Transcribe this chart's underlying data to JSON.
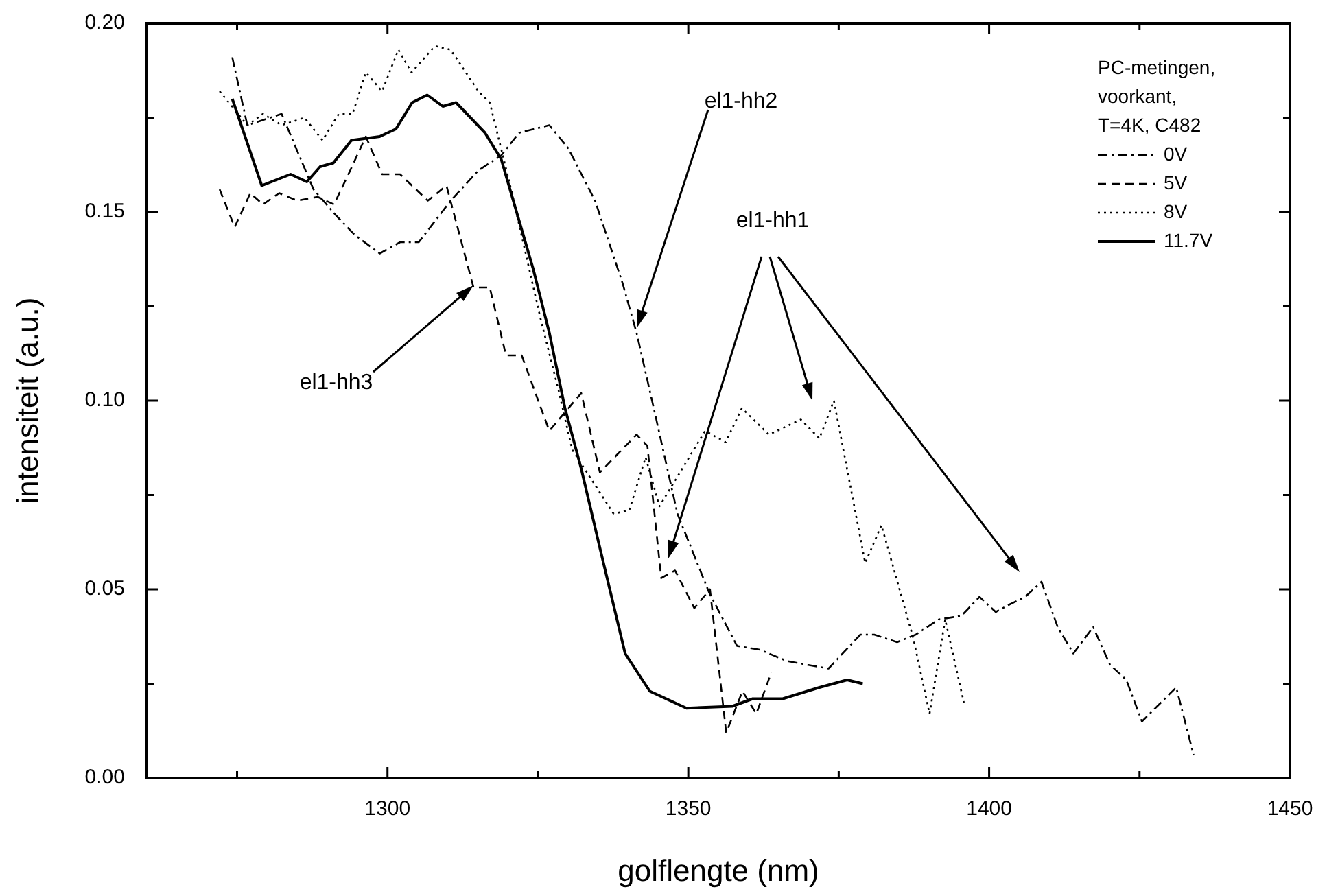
{
  "chart_data": {
    "type": "line",
    "xlabel": "golflengte (nm)",
    "ylabel": "intensiteit (a.u.)",
    "legend_title": "PC-metingen, voorkant, T=4K, C482",
    "legend": "top right",
    "marker": "none",
    "grid": false,
    "xlim": [
      1260,
      1450
    ],
    "xticks": [
      {
        "value": 1275,
        "label": null
      },
      1300,
      {
        "value": 1325,
        "label": null
      },
      1350,
      {
        "value": 1375,
        "label": null
      },
      1400,
      {
        "value": 1425,
        "label": null
      },
      1450
    ],
    "ylim": [
      0,
      0.2
    ],
    "yticks": [
      {
        "value": 0,
        "label": "0.00"
      },
      {
        "value": 0.025,
        "label": null
      },
      {
        "value": 0.05,
        "label": "0.05"
      },
      {
        "value": 0.075,
        "label": null
      },
      {
        "value": 0.1,
        "label": "0.10"
      },
      {
        "value": 0.125,
        "label": null
      },
      {
        "value": 0.15,
        "label": "0.15"
      },
      {
        "value": 0.175,
        "label": null
      },
      {
        "value": 0.2,
        "label": "0.20"
      }
    ],
    "series": [
      {
        "name": "0V",
        "color": "#000000",
        "line_style": "dashdot",
        "x": [
          1274.2,
          1276.7,
          1282.4,
          1287.7,
          1291.5,
          1294.5,
          1298.7,
          1302.1,
          1305.2,
          1310.5,
          1315.1,
          1318.9,
          1321.9,
          1326.9,
          1330.0,
          1334.5,
          1339.1,
          1341.4,
          1344.4,
          1348.2,
          1353.5,
          1358.1,
          1361.9,
          1366.4,
          1373.3,
          1378.6,
          1380.9,
          1384.7,
          1387.8,
          1391.6,
          1395.4,
          1398.4,
          1401.1,
          1403.4,
          1406.0,
          1408.7,
          1411.4,
          1414.0,
          1417.3,
          1420.1,
          1422.8,
          1425.4,
          1431.1,
          1434.0
        ],
        "values": [
          0.191,
          0.173,
          0.176,
          0.156,
          0.149,
          0.144,
          0.139,
          0.142,
          0.142,
          0.153,
          0.161,
          0.165,
          0.171,
          0.173,
          0.167,
          0.153,
          0.131,
          0.118,
          0.097,
          0.07,
          0.049,
          0.035,
          0.034,
          0.031,
          0.029,
          0.038,
          0.038,
          0.036,
          0.038,
          0.042,
          0.043,
          0.048,
          0.044,
          0.046,
          0.048,
          0.052,
          0.04,
          0.033,
          0.04,
          0.03,
          0.026,
          0.015,
          0.024,
          0.006
        ]
      },
      {
        "name": "5V",
        "color": "#000000",
        "line_style": "dashed",
        "x": [
          1272.1,
          1274.6,
          1277.2,
          1279.3,
          1282.0,
          1285.0,
          1288.4,
          1291.1,
          1293.8,
          1296.4,
          1299.1,
          1302.1,
          1306.7,
          1309.8,
          1314.3,
          1317.0,
          1319.7,
          1322.3,
          1326.9,
          1332.2,
          1335.3,
          1341.4,
          1343.2,
          1345.5,
          1347.8,
          1351.0,
          1353.6,
          1356.3,
          1359.0,
          1361.3,
          1363.8
        ],
        "values": [
          0.156,
          0.146,
          0.155,
          0.152,
          0.155,
          0.153,
          0.154,
          0.152,
          0.161,
          0.17,
          0.16,
          0.16,
          0.153,
          0.157,
          0.13,
          0.13,
          0.112,
          0.112,
          0.092,
          0.102,
          0.081,
          0.091,
          0.088,
          0.053,
          0.055,
          0.045,
          0.05,
          0.012,
          0.023,
          0.017,
          0.028
        ]
      },
      {
        "name": "8V",
        "color": "#000000",
        "line_style": "dotted",
        "x": [
          1272.1,
          1276.7,
          1279.3,
          1282.4,
          1286.2,
          1289.2,
          1291.9,
          1294.2,
          1296.4,
          1299.1,
          1301.8,
          1304.0,
          1307.9,
          1310.5,
          1315.1,
          1317.0,
          1320.4,
          1325.4,
          1328.4,
          1330.7,
          1337.6,
          1340.2,
          1342.9,
          1345.2,
          1352.8,
          1356.2,
          1358.9,
          1363.4,
          1368.7,
          1371.8,
          1374.2,
          1379.4,
          1382.1,
          1387.4,
          1390.1,
          1392.7,
          1395.8
        ],
        "values": [
          0.182,
          0.173,
          0.176,
          0.173,
          0.175,
          0.169,
          0.176,
          0.176,
          0.187,
          0.182,
          0.193,
          0.187,
          0.194,
          0.193,
          0.182,
          0.179,
          0.157,
          0.122,
          0.103,
          0.087,
          0.07,
          0.071,
          0.085,
          0.072,
          0.092,
          0.089,
          0.098,
          0.091,
          0.095,
          0.09,
          0.1,
          0.057,
          0.067,
          0.037,
          0.017,
          0.042,
          0.02
        ]
      },
      {
        "name": "11.7V",
        "color": "#000000",
        "line_style": "solid",
        "x": [
          1274.2,
          1279.1,
          1283.9,
          1286.6,
          1288.8,
          1291.0,
          1294.0,
          1298.7,
          1301.4,
          1304.1,
          1306.6,
          1309.2,
          1311.4,
          1316.2,
          1318.9,
          1324.2,
          1326.9,
          1329.5,
          1332.2,
          1335.3,
          1339.5,
          1343.6,
          1349.7,
          1357.3,
          1360.7,
          1365.7,
          1371.8,
          1376.4,
          1379.0
        ],
        "values": [
          0.18,
          0.157,
          0.16,
          0.158,
          0.162,
          0.163,
          0.169,
          0.17,
          0.172,
          0.179,
          0.181,
          0.178,
          0.179,
          0.171,
          0.164,
          0.135,
          0.118,
          0.098,
          0.082,
          0.061,
          0.033,
          0.023,
          0.0185,
          0.019,
          0.021,
          0.021,
          0.024,
          0.026,
          0.025
        ]
      }
    ],
    "annotations": [
      "el1-hh2",
      "el1-hh1",
      "el1-hh3"
    ]
  }
}
